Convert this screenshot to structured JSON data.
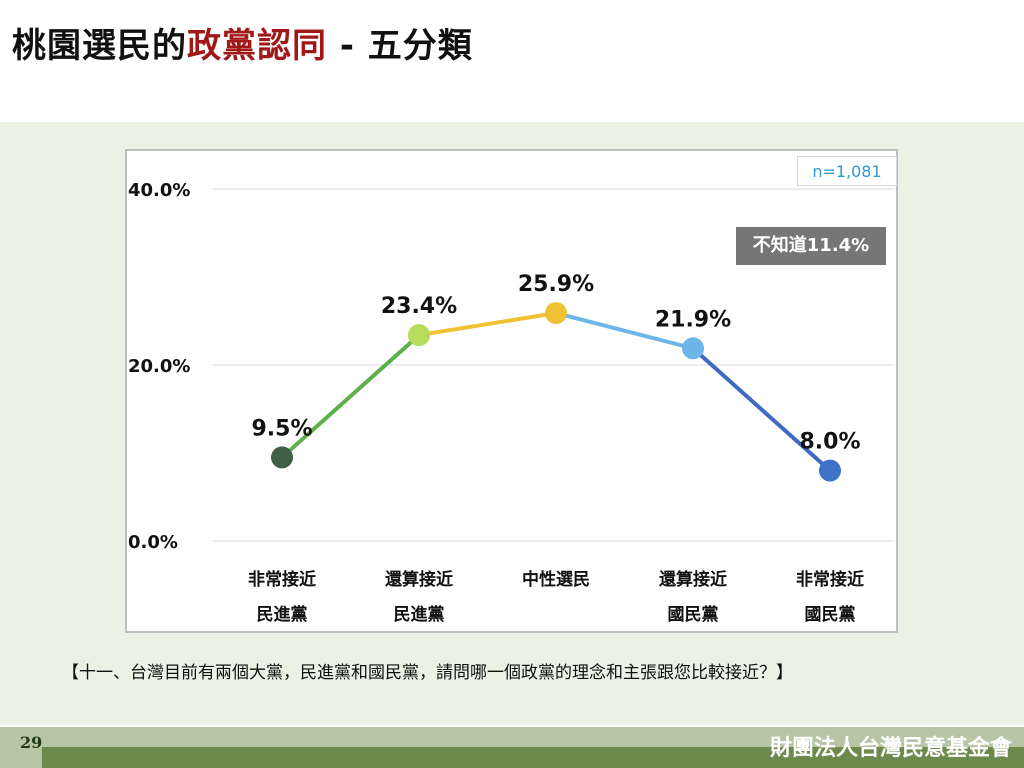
{
  "title": {
    "part1": "桃園選民的",
    "part2": "政黨認同",
    "part3": " - 五分類"
  },
  "sample_note": "n=1,081",
  "unknown_label": "不知道11.4%",
  "question": "【十一、台灣目前有兩個大黨，民進黨和國民黨，請問哪一個政黨的理念和主張跟您比較接近？】",
  "page_number": "29",
  "organization": "財團法人台灣民意基金會",
  "chart_data": {
    "type": "line",
    "categories": [
      {
        "line1": "非常接近",
        "line2": "民進黨"
      },
      {
        "line1": "還算接近",
        "line2": "民進黨"
      },
      {
        "line1": "中性選民",
        "line2": ""
      },
      {
        "line1": "還算接近",
        "line2": "國民黨"
      },
      {
        "line1": "非常接近",
        "line2": "國民黨"
      }
    ],
    "values": [
      9.5,
      23.4,
      25.9,
      21.9,
      8.0
    ],
    "value_labels": [
      "9.5%",
      "23.4%",
      "25.9%",
      "21.9%",
      "8.0%"
    ],
    "point_colors": [
      "#3f5f47",
      "#b5dc5a",
      "#f0c233",
      "#6cb6ea",
      "#3d72c7"
    ],
    "segment_colors": [
      "#5caf4a",
      "#f0c233",
      "#6cb6ea",
      "#3d6ac2"
    ],
    "ylim": [
      0,
      40
    ],
    "yticks": [
      0,
      20,
      40
    ],
    "ytick_labels": [
      "0.0%",
      "20.0%",
      "40.0%"
    ],
    "grid": true
  }
}
